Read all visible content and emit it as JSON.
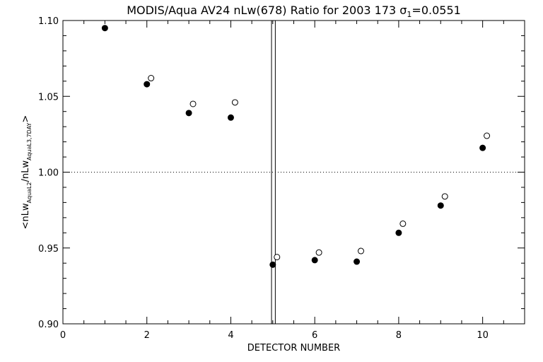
{
  "chart_data": {
    "type": "scatter",
    "title": "MODIS/Aqua AV24 nLw(678) Ratio for 2003 173 σ",
    "title_sub": "1",
    "title_suffix": "=0.0551",
    "xlabel": "DETECTOR NUMBER",
    "ylabel": {
      "lead": "<nLw",
      "sub1": "AquaL2",
      "mid": "/nLw",
      "sub2": "AquaL3,7DAY",
      "tail": ">"
    },
    "xlim": [
      0,
      11
    ],
    "ylim": [
      0.9,
      1.1
    ],
    "x_ticks": [
      0,
      2,
      4,
      6,
      8,
      10
    ],
    "x_tick_labels": [
      "0",
      "2",
      "4",
      "6",
      "8",
      "10"
    ],
    "y_ticks": [
      0.9,
      0.95,
      1.0,
      1.05,
      1.1
    ],
    "y_tick_labels": [
      "0.90",
      "0.95",
      "1.00",
      "1.05",
      "1.10"
    ],
    "reference_line_y": 1.0,
    "vertical_lines_x": [
      4.97,
      5.06
    ],
    "series": [
      {
        "marker": "filled-circle",
        "x": [
          1,
          2,
          3,
          4,
          5,
          6,
          7,
          8,
          9,
          10
        ],
        "y": [
          1.095,
          1.058,
          1.039,
          1.036,
          0.939,
          0.942,
          0.941,
          0.96,
          0.978,
          1.016
        ]
      },
      {
        "marker": "open-circle",
        "x": [
          2.1,
          3.1,
          4.1,
          5.1,
          6.1,
          7.1,
          8.1,
          9.1,
          10.1
        ],
        "y": [
          1.062,
          1.045,
          1.046,
          0.944,
          0.947,
          0.948,
          0.966,
          0.984,
          1.024
        ]
      }
    ]
  }
}
